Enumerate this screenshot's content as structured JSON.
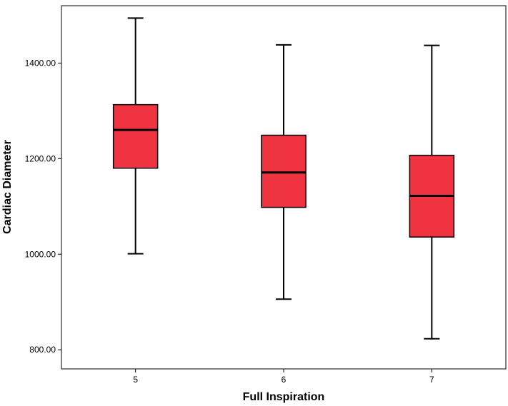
{
  "chart_data": {
    "type": "boxplot",
    "xlabel": "Full Inspiration",
    "ylabel": "Cardiac Diameter",
    "ylim": [
      760,
      1520
    ],
    "yticks": [
      800,
      1000,
      1200,
      1400
    ],
    "ytick_labels": [
      "800.00",
      "1000.00",
      "1200.00",
      "1400.00"
    ],
    "categories": [
      "5",
      "6",
      "7"
    ],
    "boxes": [
      {
        "category": "5",
        "min": 1001,
        "q1": 1180,
        "median": 1260,
        "q3": 1313,
        "max": 1494
      },
      {
        "category": "6",
        "min": 906,
        "q1": 1098,
        "median": 1171,
        "q3": 1249,
        "max": 1438
      },
      {
        "category": "7",
        "min": 823,
        "q1": 1036,
        "median": 1122,
        "q3": 1207,
        "max": 1437
      }
    ],
    "colors": {
      "box_fill": "#ef3340",
      "line": "#000000"
    },
    "grid": false
  }
}
